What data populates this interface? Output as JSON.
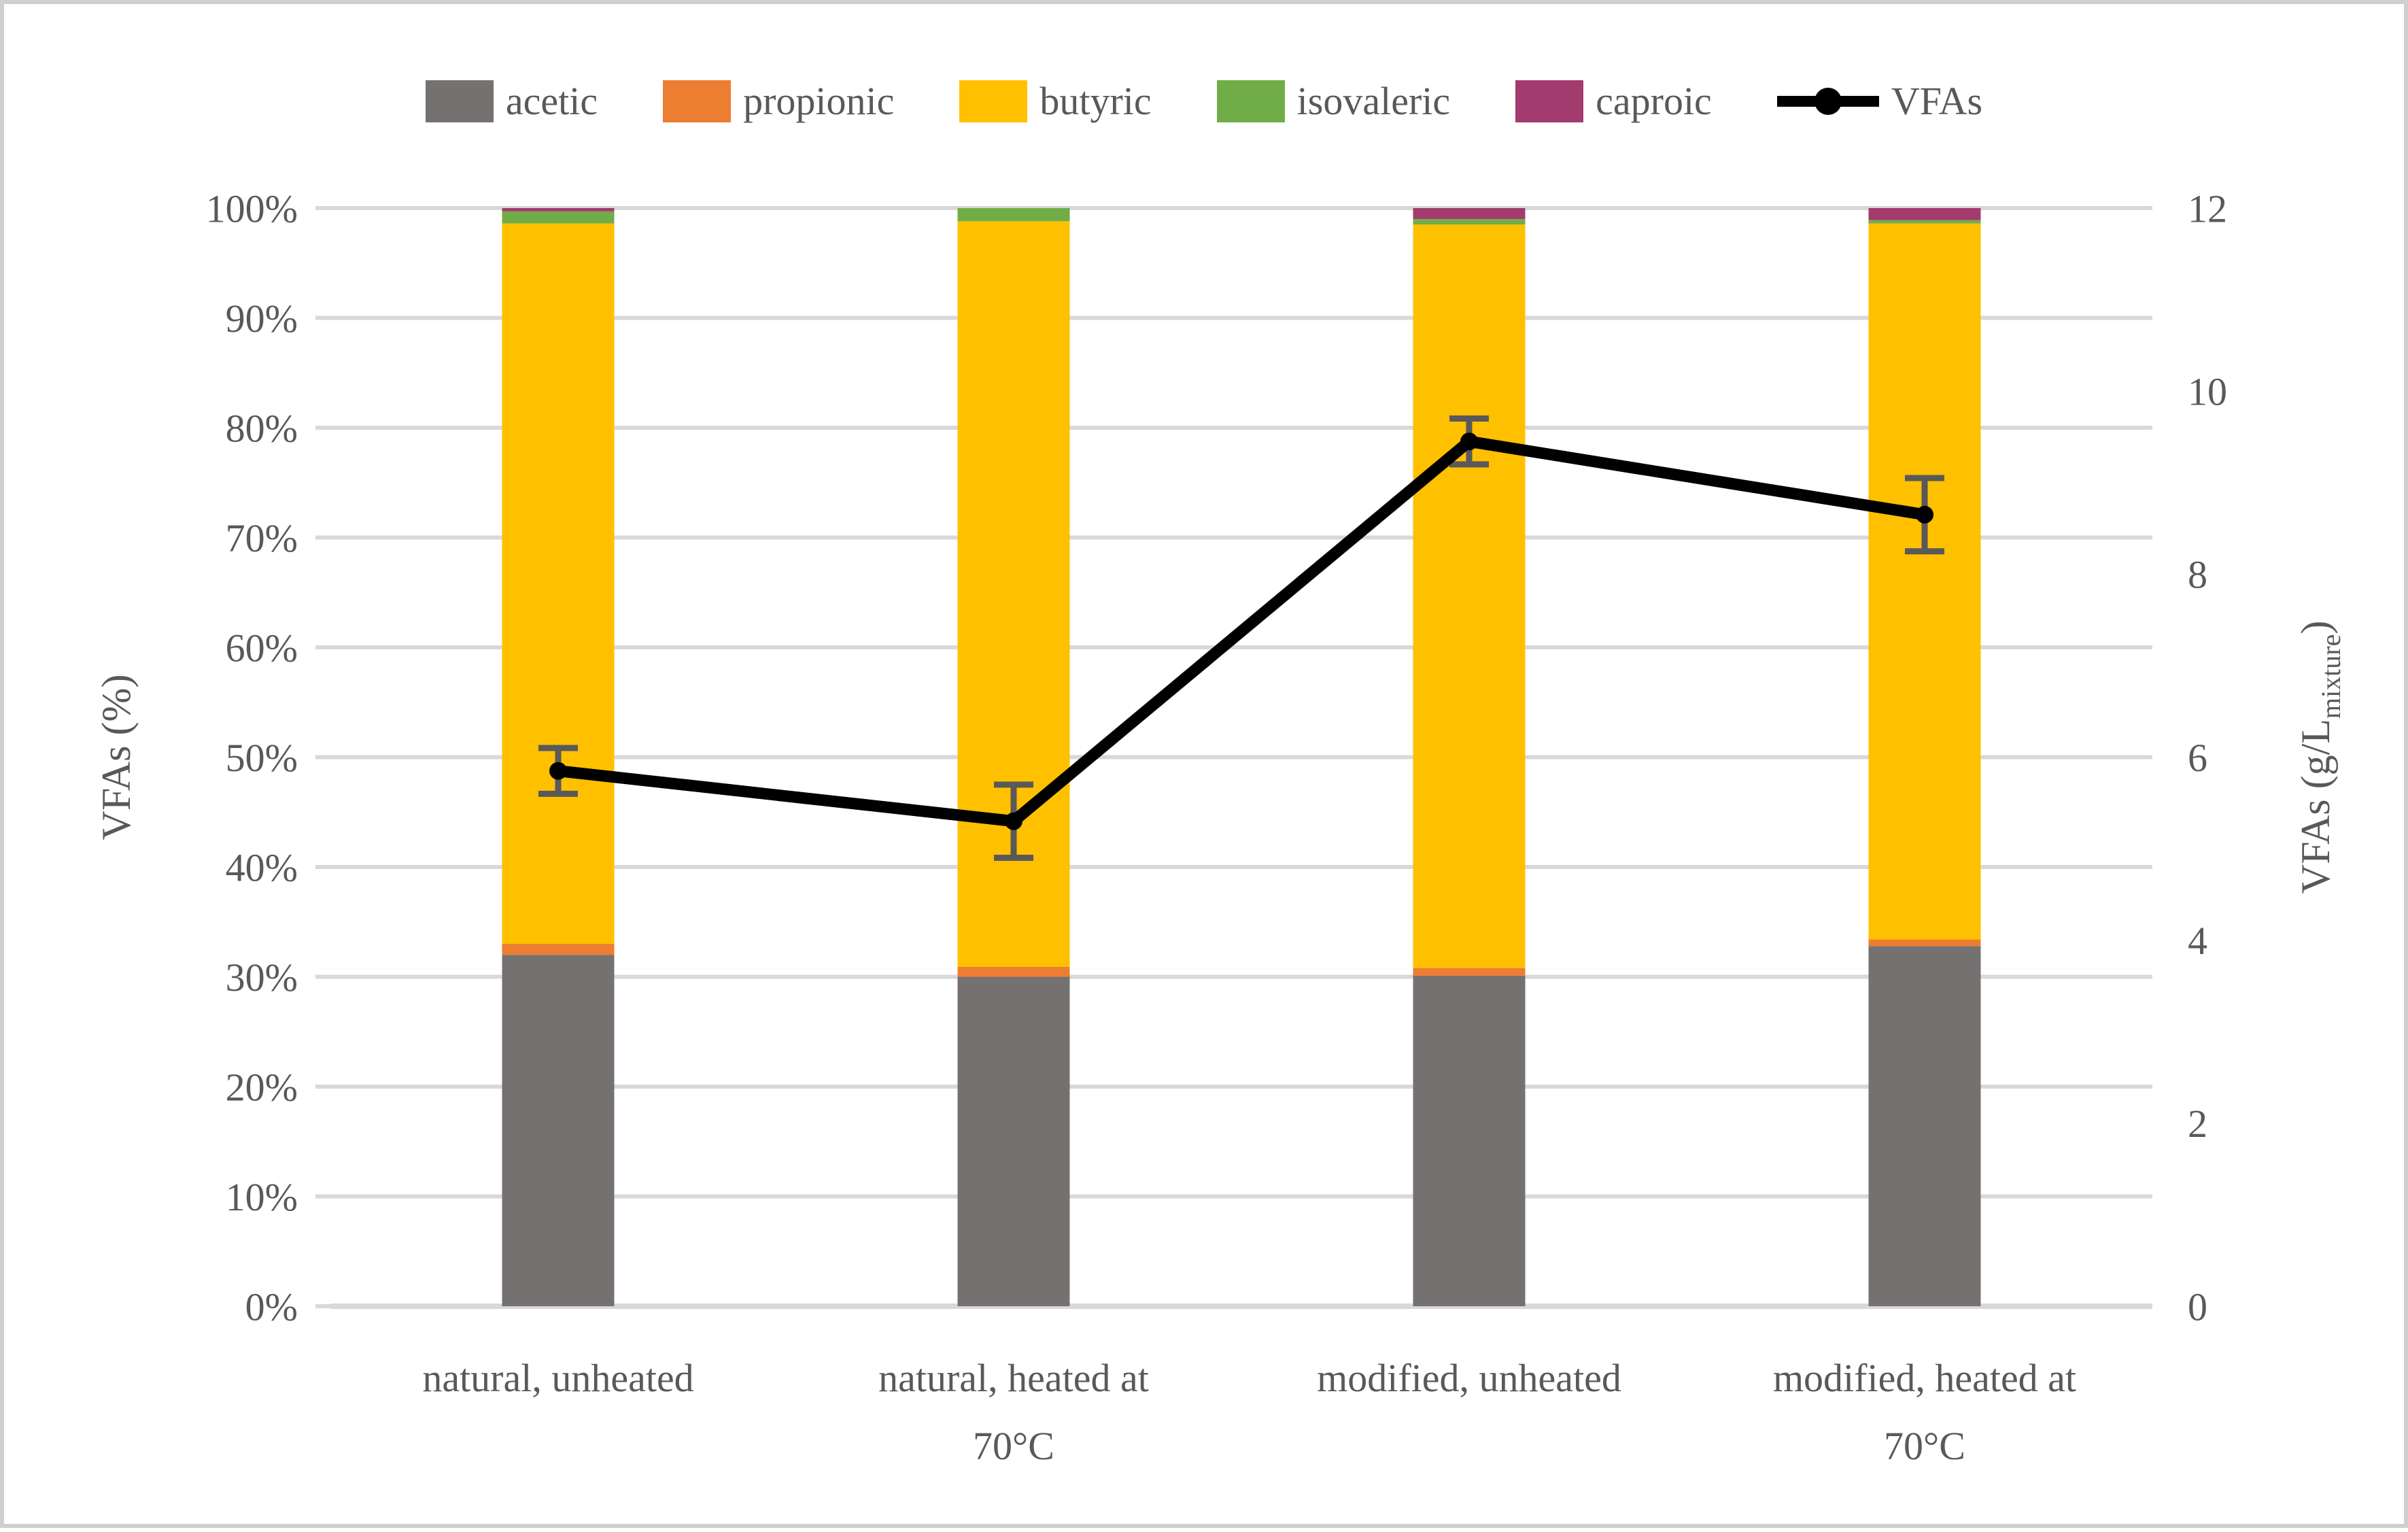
{
  "figure": {
    "background": "#ffffff",
    "border_color": "#cfcfcf",
    "text_color": "#595959",
    "gridline_color": "#d9d9d9",
    "error_bar_color": "#595959"
  },
  "chart_data": {
    "type": "bar",
    "subtype": "stacked-percent-with-line-overlay",
    "grid": true,
    "legend_position": "top",
    "categories": [
      "natural, unheated",
      "natural, heated at 70°C",
      "modified, unheated",
      "modified, heated at 70°C"
    ],
    "category_lines": [
      [
        "natural, unheated"
      ],
      [
        "natural, heated at",
        "70°C"
      ],
      [
        "modified, unheated"
      ],
      [
        "modified, heated at",
        "70°C"
      ]
    ],
    "series": [
      {
        "name": "acetic",
        "color": "#767171",
        "values": [
          32.0,
          30.0,
          30.1,
          32.8
        ]
      },
      {
        "name": "propionic",
        "color": "#ed7d31",
        "values": [
          1.0,
          0.9,
          0.7,
          0.6
        ]
      },
      {
        "name": "butyric",
        "color": "#ffc000",
        "values": [
          65.6,
          67.9,
          67.7,
          65.2
        ]
      },
      {
        "name": "isovaleric",
        "color": "#70ad47",
        "values": [
          1.1,
          1.2,
          0.5,
          0.3
        ]
      },
      {
        "name": "caproic",
        "color": "#a23b6e",
        "values": [
          0.3,
          0.0,
          1.0,
          1.1
        ]
      }
    ],
    "line_series": {
      "name": "VFAs",
      "color": "#000000",
      "axis": "right",
      "values": [
        5.85,
        5.3,
        9.45,
        8.65
      ],
      "error_plus_minus": [
        0.25,
        0.4,
        0.25,
        0.4
      ],
      "legend_marker": "line-dot"
    },
    "left_axis": {
      "label": "VFAs (%)",
      "min": 0,
      "max": 100,
      "step": 10,
      "ticks": [
        "0%",
        "10%",
        "20%",
        "30%",
        "40%",
        "50%",
        "60%",
        "70%",
        "80%",
        "90%",
        "100%"
      ]
    },
    "right_axis": {
      "label_pre": "VFAs (g/L",
      "label_sub": "mixture",
      "label_post": ")",
      "min": 0,
      "max": 12,
      "step": 2,
      "ticks": [
        "0",
        "2",
        "4",
        "6",
        "8",
        "10",
        "12"
      ]
    }
  }
}
